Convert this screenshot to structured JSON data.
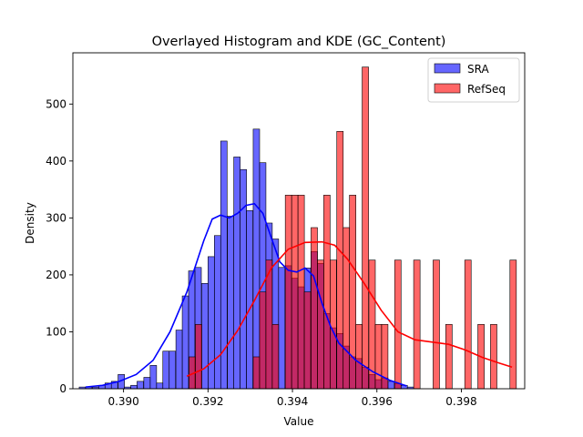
{
  "chart_data": {
    "type": "bar",
    "title": "Overlayed Histogram and KDE (GC_Content)",
    "xlabel": "Value",
    "ylabel": "Density",
    "xlim": [
      0.3888,
      0.3995
    ],
    "ylim": [
      0,
      590
    ],
    "xticks": [
      0.39,
      0.392,
      0.394,
      0.396,
      0.398
    ],
    "xtick_labels": [
      "0.390",
      "0.392",
      "0.394",
      "0.396",
      "0.398"
    ],
    "yticks": [
      0,
      100,
      200,
      300,
      400,
      500
    ],
    "ytick_labels": [
      "0",
      "100",
      "200",
      "300",
      "400",
      "500"
    ],
    "grid": false,
    "legend_position": "top-right",
    "series": [
      {
        "name": "SRA",
        "color": "#0000ff",
        "bin_width": 0.000152,
        "bins": [
          [
            0.38895,
            3
          ],
          [
            0.3891,
            3
          ],
          [
            0.38926,
            3
          ],
          [
            0.38941,
            6
          ],
          [
            0.38956,
            10
          ],
          [
            0.38971,
            13
          ],
          [
            0.38987,
            25
          ],
          [
            0.39002,
            3
          ],
          [
            0.39017,
            6
          ],
          [
            0.39032,
            13
          ],
          [
            0.39048,
            20
          ],
          [
            0.39063,
            41
          ],
          [
            0.39078,
            10
          ],
          [
            0.39093,
            66
          ],
          [
            0.39108,
            66
          ],
          [
            0.39124,
            103
          ],
          [
            0.39139,
            163
          ],
          [
            0.39154,
            207
          ],
          [
            0.39169,
            213
          ],
          [
            0.39185,
            185
          ],
          [
            0.392,
            232
          ],
          [
            0.39215,
            269
          ],
          [
            0.3923,
            435
          ],
          [
            0.39246,
            303
          ],
          [
            0.39261,
            407
          ],
          [
            0.39276,
            385
          ],
          [
            0.39291,
            313
          ],
          [
            0.39307,
            456
          ],
          [
            0.39322,
            397
          ],
          [
            0.39337,
            291
          ],
          [
            0.39352,
            263
          ],
          [
            0.39367,
            213
          ],
          [
            0.39383,
            216
          ],
          [
            0.39398,
            194
          ],
          [
            0.39413,
            179
          ],
          [
            0.39428,
            212
          ],
          [
            0.39444,
            241
          ],
          [
            0.39459,
            220
          ],
          [
            0.39474,
            132
          ],
          [
            0.39489,
            107
          ],
          [
            0.39505,
            97
          ],
          [
            0.3952,
            75
          ],
          [
            0.39535,
            56
          ],
          [
            0.3955,
            53
          ],
          [
            0.39565,
            38
          ],
          [
            0.39581,
            25
          ],
          [
            0.39596,
            16
          ],
          [
            0.39611,
            19
          ],
          [
            0.39626,
            13
          ],
          [
            0.39642,
            9
          ],
          [
            0.39657,
            6
          ],
          [
            0.39672,
            3
          ]
        ],
        "kde_x": [
          0.3891,
          0.3895,
          0.3899,
          0.3903,
          0.3907,
          0.3911,
          0.3915,
          0.3919,
          0.3921,
          0.3923,
          0.3925,
          0.3927,
          0.3929,
          0.3931,
          0.3933,
          0.3935,
          0.3937,
          0.3939,
          0.3941,
          0.3943,
          0.3945,
          0.3947,
          0.3949,
          0.3951,
          0.3955,
          0.3959,
          0.3963,
          0.3967
        ],
        "kde_y": [
          3,
          6,
          13,
          25,
          50,
          100,
          170,
          260,
          298,
          305,
          300,
          308,
          322,
          325,
          308,
          265,
          223,
          208,
          205,
          212,
          198,
          150,
          110,
          80,
          50,
          30,
          15,
          5
        ]
      },
      {
        "name": "RefSeq",
        "color": "#ff0000",
        "bin_width": 0.000152,
        "bins": [
          [
            0.39155,
            56
          ],
          [
            0.3917,
            113
          ],
          [
            0.39307,
            56
          ],
          [
            0.39322,
            170
          ],
          [
            0.39337,
            226
          ],
          [
            0.39352,
            113
          ],
          [
            0.39383,
            340
          ],
          [
            0.39398,
            340
          ],
          [
            0.39413,
            340
          ],
          [
            0.39428,
            170
          ],
          [
            0.39444,
            283
          ],
          [
            0.39459,
            226
          ],
          [
            0.39474,
            340
          ],
          [
            0.39489,
            226
          ],
          [
            0.39505,
            452
          ],
          [
            0.3952,
            283
          ],
          [
            0.39535,
            340
          ],
          [
            0.3955,
            113
          ],
          [
            0.39565,
            565
          ],
          [
            0.39581,
            226
          ],
          [
            0.39596,
            113
          ],
          [
            0.39611,
            113
          ],
          [
            0.39642,
            226
          ],
          [
            0.39687,
            226
          ],
          [
            0.39733,
            226
          ],
          [
            0.39763,
            113
          ],
          [
            0.39808,
            226
          ],
          [
            0.39839,
            113
          ],
          [
            0.39869,
            113
          ],
          [
            0.39915,
            226
          ]
        ],
        "kde_x": [
          0.3915,
          0.3919,
          0.3923,
          0.3927,
          0.3931,
          0.3935,
          0.3939,
          0.3943,
          0.3947,
          0.395,
          0.3953,
          0.3957,
          0.3961,
          0.3965,
          0.3969,
          0.3973,
          0.3977,
          0.3981,
          0.3985,
          0.3989,
          0.3992
        ],
        "kde_y": [
          22,
          35,
          60,
          102,
          155,
          212,
          245,
          257,
          258,
          252,
          228,
          185,
          138,
          100,
          86,
          82,
          78,
          68,
          55,
          45,
          38
        ]
      }
    ]
  }
}
